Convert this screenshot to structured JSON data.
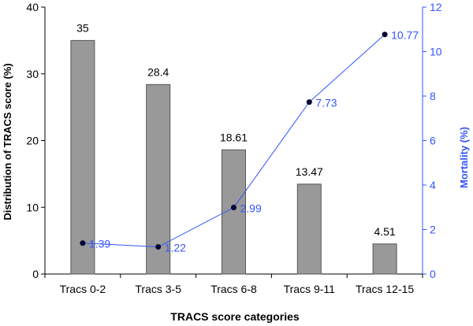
{
  "chart_data": {
    "type": "bar",
    "categories": [
      "Tracs 0-2",
      "Tracs 3-5",
      "Tracs 6-8",
      "Tracs 9-11",
      "Tracs 12-15"
    ],
    "xlabel": "TRACS score categories",
    "ylabel": "Distribution of TRACS score (%)",
    "y2label": "Mortality (%)",
    "ylim": [
      0,
      40
    ],
    "y2lim": [
      0,
      12
    ],
    "yticks": [
      0,
      10,
      20,
      30,
      40
    ],
    "y2ticks": [
      0,
      2,
      4,
      6,
      8,
      10,
      12
    ],
    "grid": false,
    "series": [
      {
        "type": "bar",
        "axis": "left",
        "values": [
          35,
          28.4,
          18.61,
          13.47,
          4.51
        ],
        "labels": [
          "35",
          "28.4",
          "18.61",
          "13.47",
          "4.51"
        ],
        "color": "#999999"
      },
      {
        "type": "line",
        "axis": "right",
        "values": [
          1.39,
          1.22,
          2.99,
          7.73,
          10.77
        ],
        "labels": [
          "1.39",
          "1.22",
          "2.99",
          "7.73",
          "10.77"
        ],
        "color": "#3355ff",
        "marker_color": "#000033"
      }
    ],
    "colors": {
      "left_axis": "#000000",
      "right_axis": "#3355ff",
      "bar_border": "#555555"
    }
  }
}
